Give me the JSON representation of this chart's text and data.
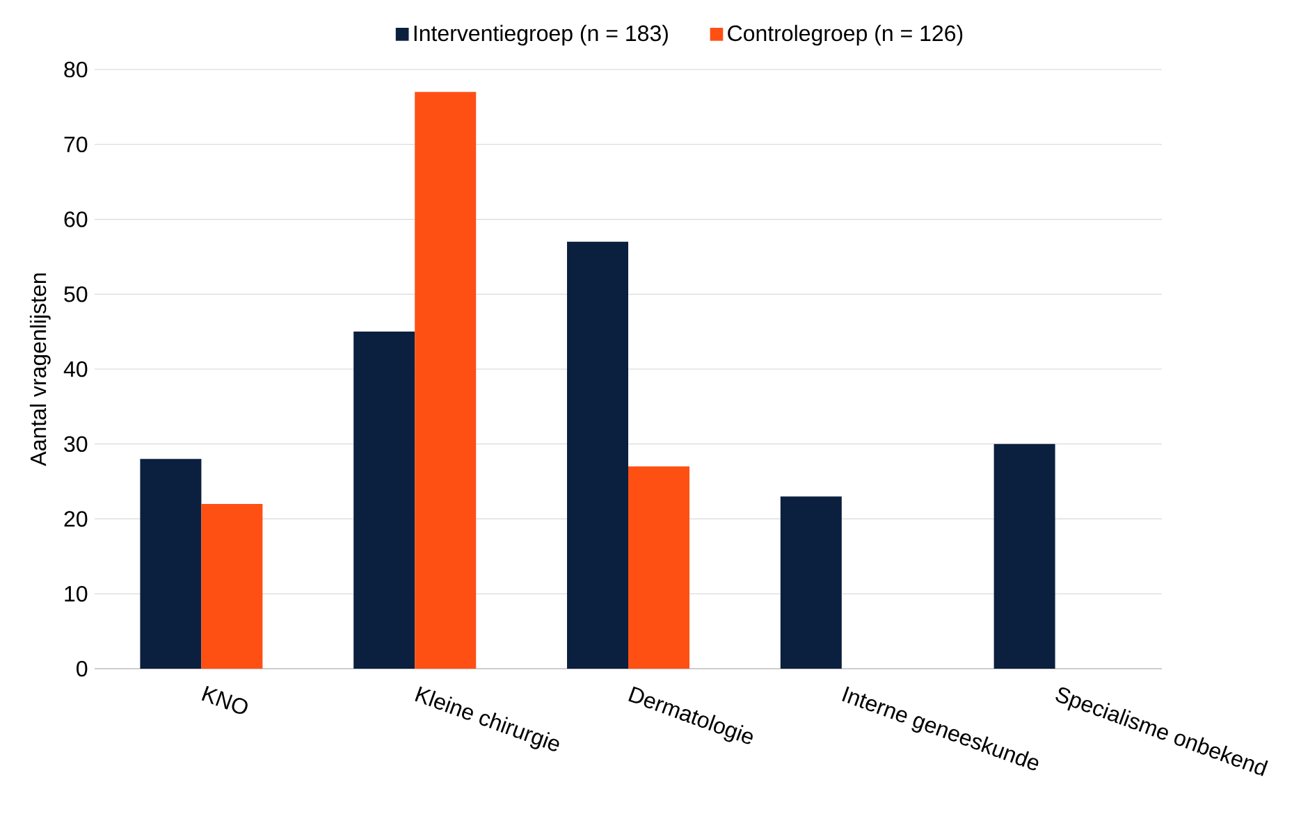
{
  "chart_data": {
    "type": "bar",
    "ylabel": "Aantal vragenlijsten",
    "categories": [
      "KNO",
      "Kleine chirurgie",
      "Dermatologie",
      "Interne geneeskunde",
      "Specialisme onbekend"
    ],
    "series": [
      {
        "name": "Interventiegroep (n = 183)",
        "color": "#0b1f3f",
        "values": [
          28,
          45,
          57,
          23,
          30
        ]
      },
      {
        "name": "Controlegroep (n = 126)",
        "color": "#ff5014",
        "values": [
          22,
          77,
          27,
          null,
          null
        ]
      }
    ],
    "ylim": [
      0,
      80
    ],
    "yticks": [
      0,
      10,
      20,
      30,
      40,
      50,
      60,
      70,
      80
    ],
    "grid": "y",
    "legend": "top"
  }
}
